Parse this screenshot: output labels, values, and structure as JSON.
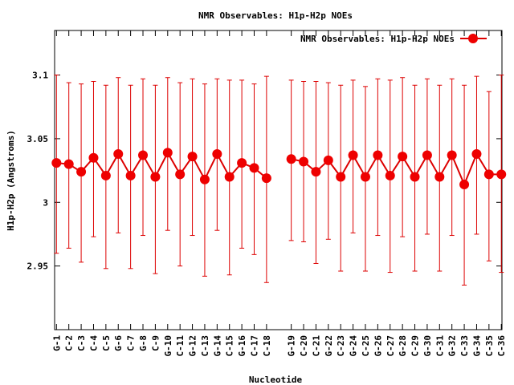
{
  "chart_data": {
    "type": "line",
    "title": "NMR Observables: H1p-H2p NOEs",
    "xlabel": "Nucleotide",
    "ylabel": "H1p-H2p (Angstroms)",
    "legend": {
      "label": "NMR Observables: H1p-H2p NOEs",
      "placement": "top-right"
    },
    "ylim": [
      2.9,
      3.135
    ],
    "y_ticks": [
      {
        "value": 2.95,
        "label": "2.95"
      },
      {
        "value": 3.0,
        "label": "3"
      },
      {
        "value": 3.05,
        "label": "3.05"
      },
      {
        "value": 3.1,
        "label": "3.1"
      }
    ],
    "x_range": [
      0.85,
      37.05
    ],
    "grid": false,
    "series_color": "#dd0000",
    "categories": [
      "G-1",
      "C-2",
      "C-3",
      "C-4",
      "C-5",
      "G-6",
      "C-7",
      "G-8",
      "C-9",
      "G-10",
      "C-11",
      "G-12",
      "C-13",
      "G-14",
      "C-15",
      "G-16",
      "C-17",
      "C-18",
      "G-19",
      "C-20",
      "C-21",
      "G-22",
      "C-23",
      "G-24",
      "C-25",
      "G-26",
      "C-27",
      "G-28",
      "C-29",
      "G-30",
      "C-31",
      "G-32",
      "C-33",
      "G-34",
      "C-35",
      "C-36"
    ],
    "x": [
      1,
      2,
      3,
      4,
      5,
      6,
      7,
      8,
      9,
      10,
      11,
      12,
      13,
      14,
      15,
      16,
      17,
      18,
      20,
      21,
      22,
      23,
      24,
      25,
      26,
      27,
      28,
      29,
      30,
      31,
      32,
      33,
      34,
      35,
      36,
      37
    ],
    "values": [
      3.031,
      3.03,
      3.024,
      3.035,
      3.021,
      3.038,
      3.021,
      3.037,
      3.02,
      3.039,
      3.022,
      3.036,
      3.018,
      3.038,
      3.02,
      3.031,
      3.027,
      3.019,
      3.034,
      3.032,
      3.024,
      3.033,
      3.02,
      3.037,
      3.02,
      3.037,
      3.021,
      3.036,
      3.02,
      3.037,
      3.02,
      3.037,
      3.014,
      3.038,
      3.022,
      3.022
    ],
    "err_high": [
      3.1,
      3.094,
      3.093,
      3.095,
      3.092,
      3.098,
      3.092,
      3.097,
      3.092,
      3.098,
      3.094,
      3.097,
      3.093,
      3.097,
      3.096,
      3.096,
      3.093,
      3.099,
      3.096,
      3.095,
      3.095,
      3.094,
      3.092,
      3.096,
      3.091,
      3.097,
      3.096,
      3.098,
      3.092,
      3.097,
      3.092,
      3.097,
      3.092,
      3.099,
      3.087,
      3.1
    ],
    "err_low": [
      2.96,
      2.964,
      2.953,
      2.973,
      2.948,
      2.976,
      2.948,
      2.974,
      2.944,
      2.978,
      2.95,
      2.974,
      2.942,
      2.978,
      2.943,
      2.964,
      2.959,
      2.937,
      2.97,
      2.969,
      2.952,
      2.971,
      2.946,
      2.976,
      2.946,
      2.974,
      2.945,
      2.973,
      2.946,
      2.975,
      2.946,
      2.974,
      2.935,
      2.975,
      2.954,
      2.945
    ]
  }
}
